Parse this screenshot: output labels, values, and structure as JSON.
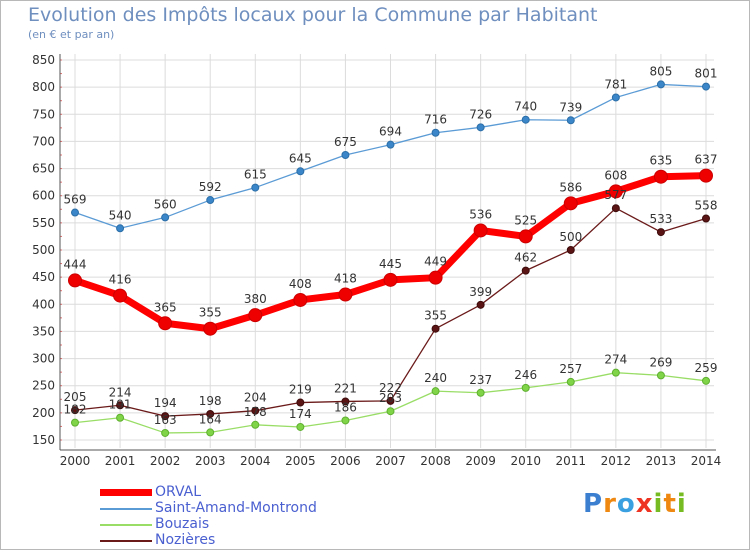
{
  "chart_data": {
    "type": "line",
    "title": "Evolution des Impôts locaux pour la Commune par Habitant",
    "subtitle": "(en € et par an)",
    "xlabel": "",
    "ylabel": "",
    "x": [
      "2000",
      "2001",
      "2002",
      "2003",
      "2004",
      "2005",
      "2006",
      "2007",
      "2008",
      "2009",
      "2010",
      "2011",
      "2012",
      "2013",
      "2014"
    ],
    "ylim": [
      150,
      850
    ],
    "yticks": [
      150,
      200,
      250,
      300,
      350,
      400,
      450,
      500,
      550,
      600,
      650,
      700,
      750,
      800,
      850
    ],
    "grid": true,
    "legend_position": "bottom-left",
    "series": [
      {
        "name": "ORVAL",
        "color": "#ff0000",
        "values": [
          444,
          416,
          365,
          355,
          380,
          408,
          418,
          445,
          449,
          536,
          525,
          586,
          608,
          635,
          637
        ]
      },
      {
        "name": "Saint-Amand-Montrond",
        "color": "#5b9bd5",
        "values": [
          569,
          540,
          560,
          592,
          615,
          645,
          675,
          694,
          716,
          726,
          740,
          739,
          781,
          805,
          801
        ]
      },
      {
        "name": "Bouzais",
        "color": "#99dd66",
        "values": [
          182,
          191,
          163,
          164,
          178,
          174,
          186,
          203,
          240,
          237,
          246,
          257,
          274,
          269,
          259
        ]
      },
      {
        "name": "Nozières",
        "color": "#6b1a1a",
        "values": [
          205,
          214,
          194,
          198,
          204,
          219,
          221,
          222,
          355,
          399,
          462,
          500,
          577,
          533,
          558
        ]
      }
    ]
  },
  "logo": {
    "letters": [
      "P",
      "r",
      "o",
      "x",
      "i",
      "t",
      "i"
    ],
    "colors": [
      "#3a7fd0",
      "#ee8811",
      "#3aa0e0",
      "#ee3322",
      "#77bb22",
      "#ee8811",
      "#77bb22"
    ]
  }
}
